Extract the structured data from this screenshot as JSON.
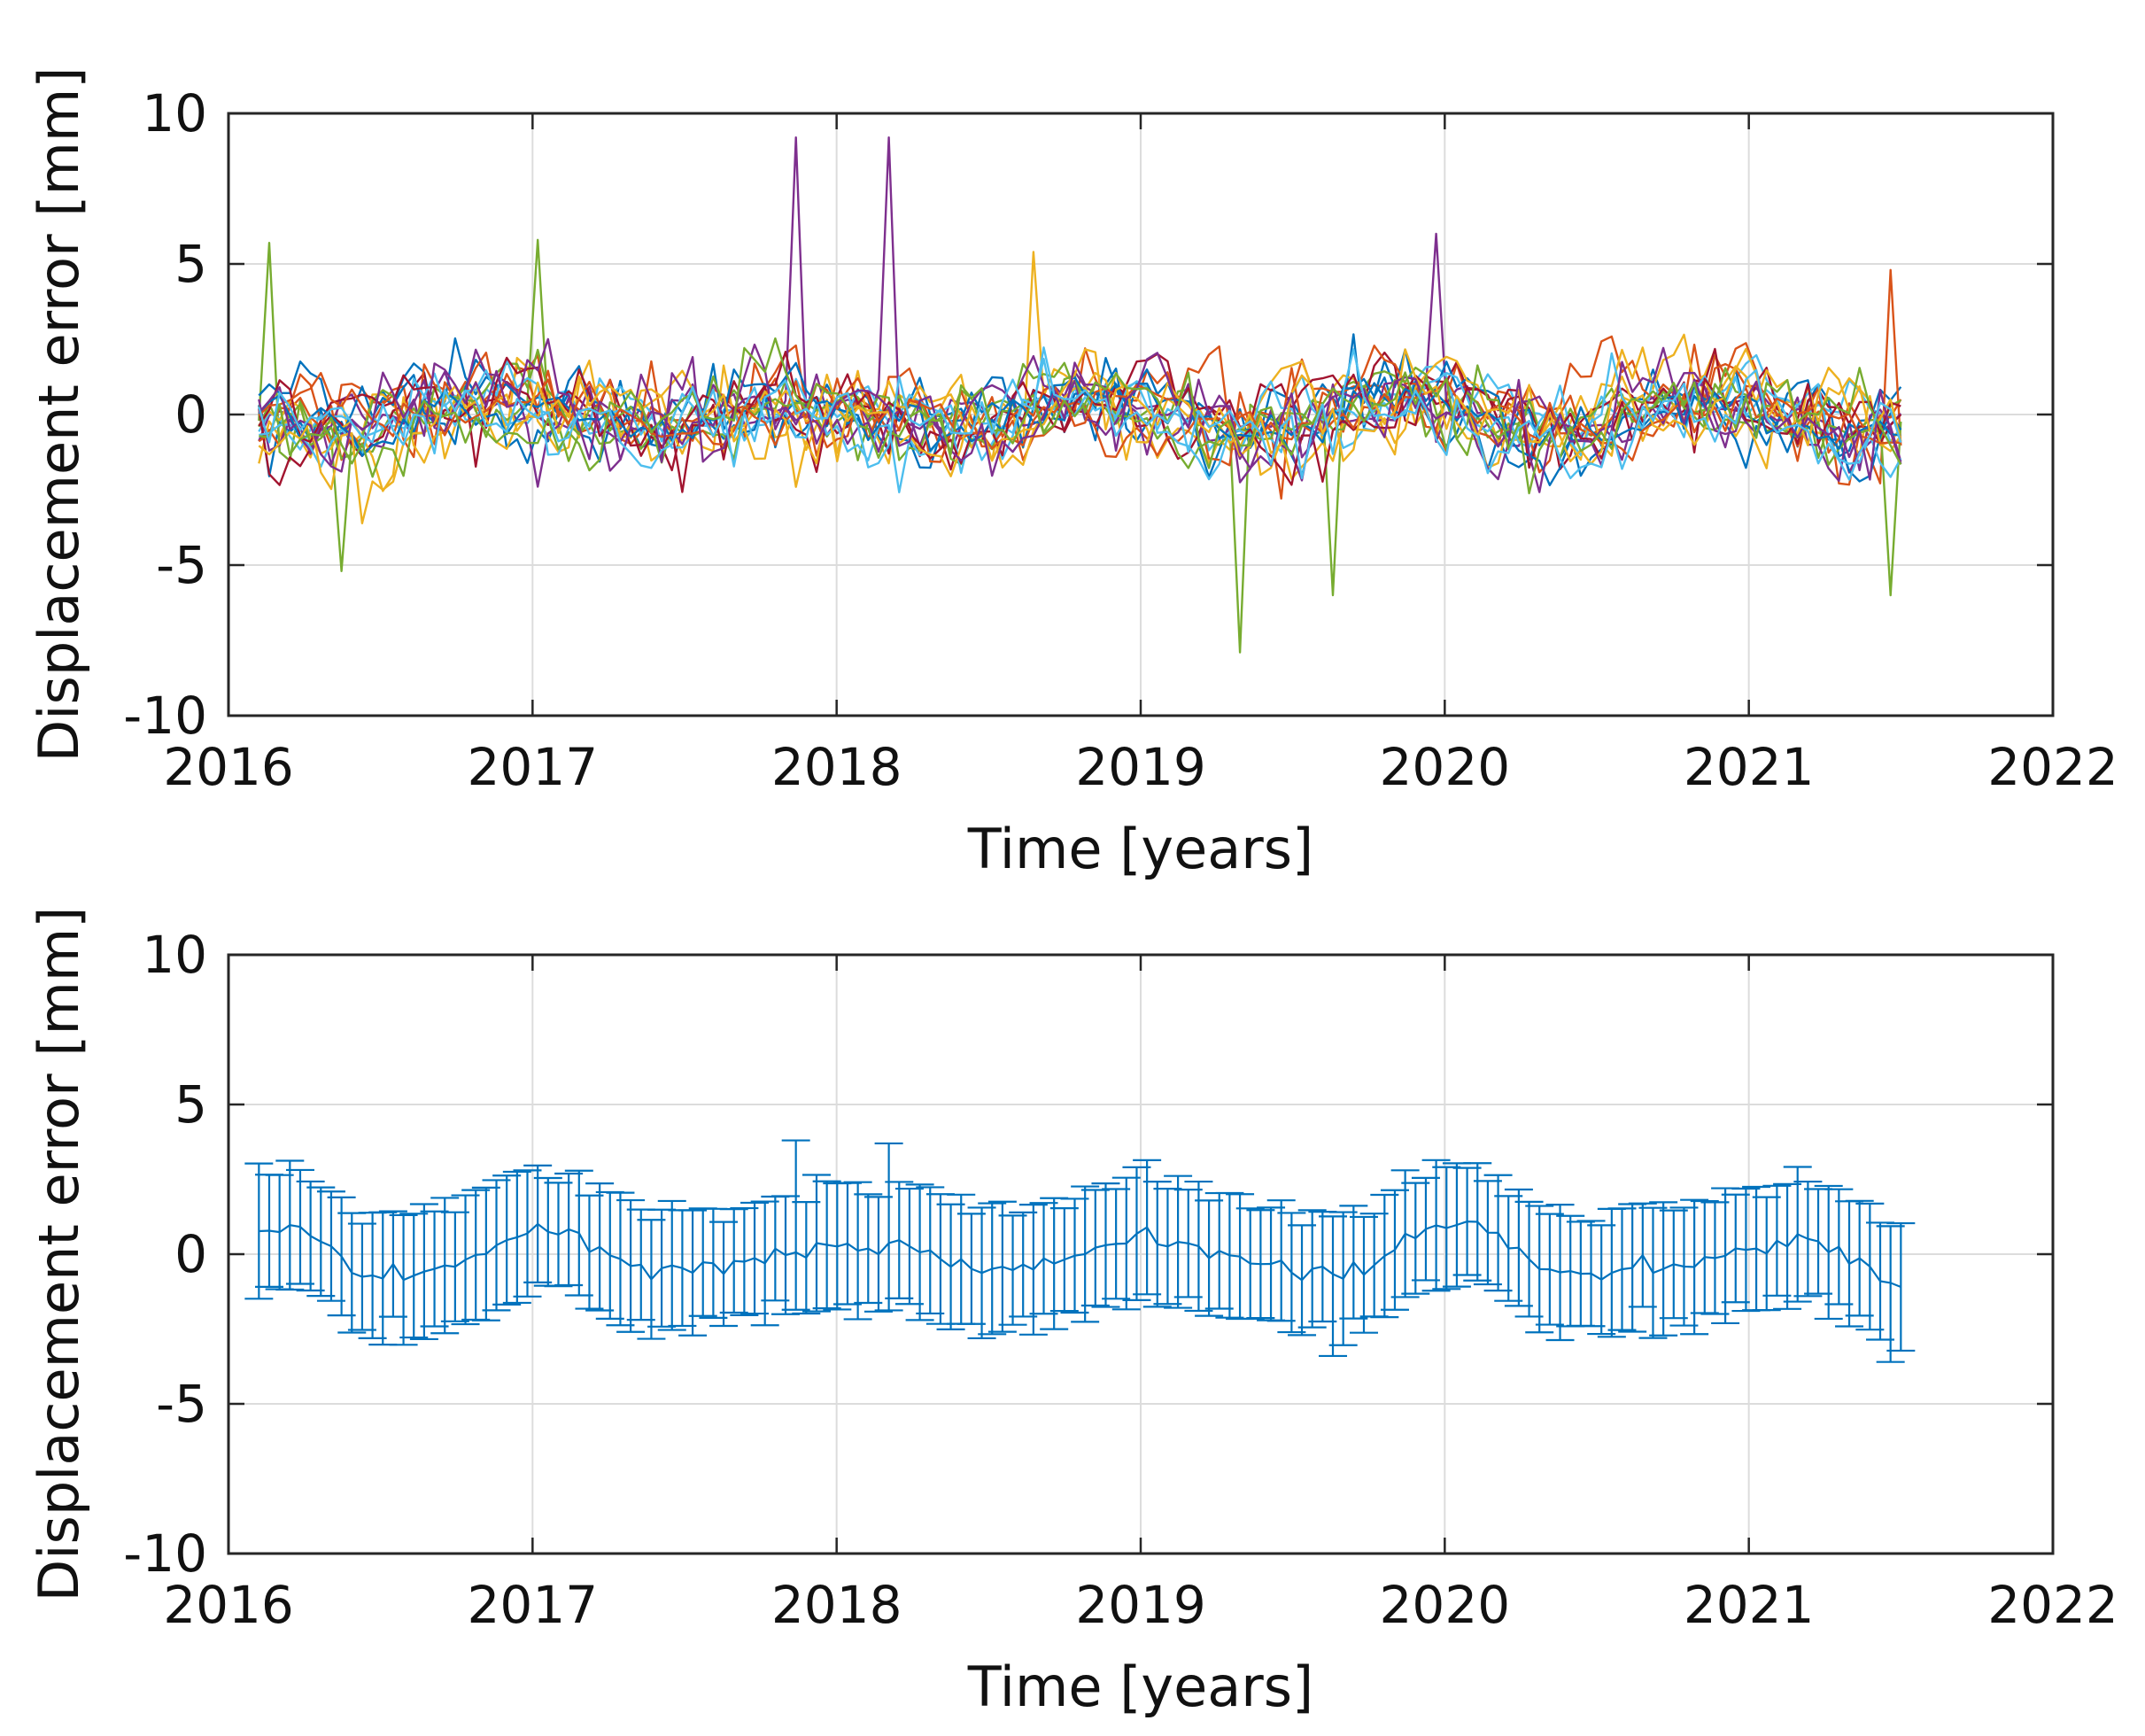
{
  "chart_data": [
    {
      "id": "top",
      "type": "line",
      "title": "",
      "xlabel": "Time [years]",
      "ylabel": "Displacement error [mm]",
      "xlim": [
        2016,
        2022
      ],
      "ylim": [
        -10,
        10
      ],
      "xticks": [
        2016,
        2017,
        2018,
        2019,
        2020,
        2021,
        2022
      ],
      "xtick_labels": [
        "2016",
        "2017",
        "2018",
        "2019",
        "2020",
        "2021",
        "2022"
      ],
      "yticks": [
        -10,
        -5,
        0,
        5,
        10
      ],
      "ytick_labels": [
        "-10",
        "-5",
        "0",
        "5",
        "10"
      ],
      "grid": true,
      "colors": [
        "#0072BD",
        "#D95319",
        "#EDB120",
        "#7E2F8E",
        "#77AC30",
        "#4DBEEE",
        "#A2142F"
      ],
      "series_time": {
        "start": 2016.1,
        "end": 2021.5,
        "count": 160,
        "note": "20 overlapping residual series; random noise approx. +/-3 mm with isolated spikes"
      },
      "series_count": 20,
      "notable_values": [
        {
          "x": 2016.13,
          "y": 5.7,
          "series": 4
        },
        {
          "x": 2017.02,
          "y": 5.8,
          "series": 4
        },
        {
          "x": 2017.88,
          "y": 9.2,
          "series": 3
        },
        {
          "x": 2018.17,
          "y": 9.2,
          "series": 3
        },
        {
          "x": 2018.66,
          "y": 5.4,
          "series": 2
        },
        {
          "x": 2019.96,
          "y": 6.0,
          "series": 3
        },
        {
          "x": 2021.48,
          "y": 4.8,
          "series": 1
        },
        {
          "x": 2019.34,
          "y": -7.9,
          "series": 4
        },
        {
          "x": 2021.48,
          "y": -6.0,
          "series": 4
        },
        {
          "x": 2019.63,
          "y": -6.0,
          "series": 4
        },
        {
          "x": 2016.38,
          "y": -5.2,
          "series": 4
        }
      ]
    },
    {
      "id": "bottom",
      "type": "errorbar",
      "title": "",
      "xlabel": "Time [years]",
      "ylabel": "Displacement error [mm]",
      "xlim": [
        2016,
        2022
      ],
      "ylim": [
        -10,
        10
      ],
      "xticks": [
        2016,
        2017,
        2018,
        2019,
        2020,
        2021,
        2022
      ],
      "xtick_labels": [
        "2016",
        "2017",
        "2018",
        "2019",
        "2020",
        "2021",
        "2022"
      ],
      "yticks": [
        -10,
        -5,
        0,
        5,
        10
      ],
      "ytick_labels": [
        "-10",
        "-5",
        "0",
        "5",
        "10"
      ],
      "grid": true,
      "color": "#0072BD",
      "x_start": 2016.1,
      "x_end": 2021.5,
      "count": 160,
      "mean_trend": [
        [
          2016.1,
          0.8
        ],
        [
          2016.2,
          1.0
        ],
        [
          2016.35,
          0.0
        ],
        [
          2016.45,
          -0.8
        ],
        [
          2016.6,
          -0.7
        ],
        [
          2016.8,
          -0.2
        ],
        [
          2017.0,
          1.0
        ],
        [
          2017.15,
          0.6
        ],
        [
          2017.3,
          -0.4
        ],
        [
          2017.5,
          -0.5
        ],
        [
          2017.7,
          -0.2
        ],
        [
          2017.9,
          0.2
        ],
        [
          2018.2,
          0.3
        ],
        [
          2018.4,
          -0.3
        ],
        [
          2018.6,
          -0.5
        ],
        [
          2018.8,
          0.1
        ],
        [
          2019.0,
          0.7
        ],
        [
          2019.2,
          0.3
        ],
        [
          2019.45,
          -0.3
        ],
        [
          2019.65,
          -0.6
        ],
        [
          2019.8,
          -0.2
        ],
        [
          2020.0,
          1.0
        ],
        [
          2020.15,
          0.6
        ],
        [
          2020.35,
          -0.5
        ],
        [
          2020.6,
          -0.7
        ],
        [
          2020.85,
          -0.2
        ],
        [
          2021.0,
          0.0
        ],
        [
          2021.15,
          0.6
        ],
        [
          2021.3,
          0.1
        ],
        [
          2021.5,
          -1.2
        ]
      ],
      "error_halfwidth_mm": 2.0,
      "outliers": [
        {
          "x": 2017.88,
          "upper": 3.8
        },
        {
          "x": 2018.17,
          "upper": 3.7
        },
        {
          "x": 2019.63,
          "lower": -3.4
        },
        {
          "x": 2021.47,
          "lower": -3.6
        }
      ]
    }
  ]
}
